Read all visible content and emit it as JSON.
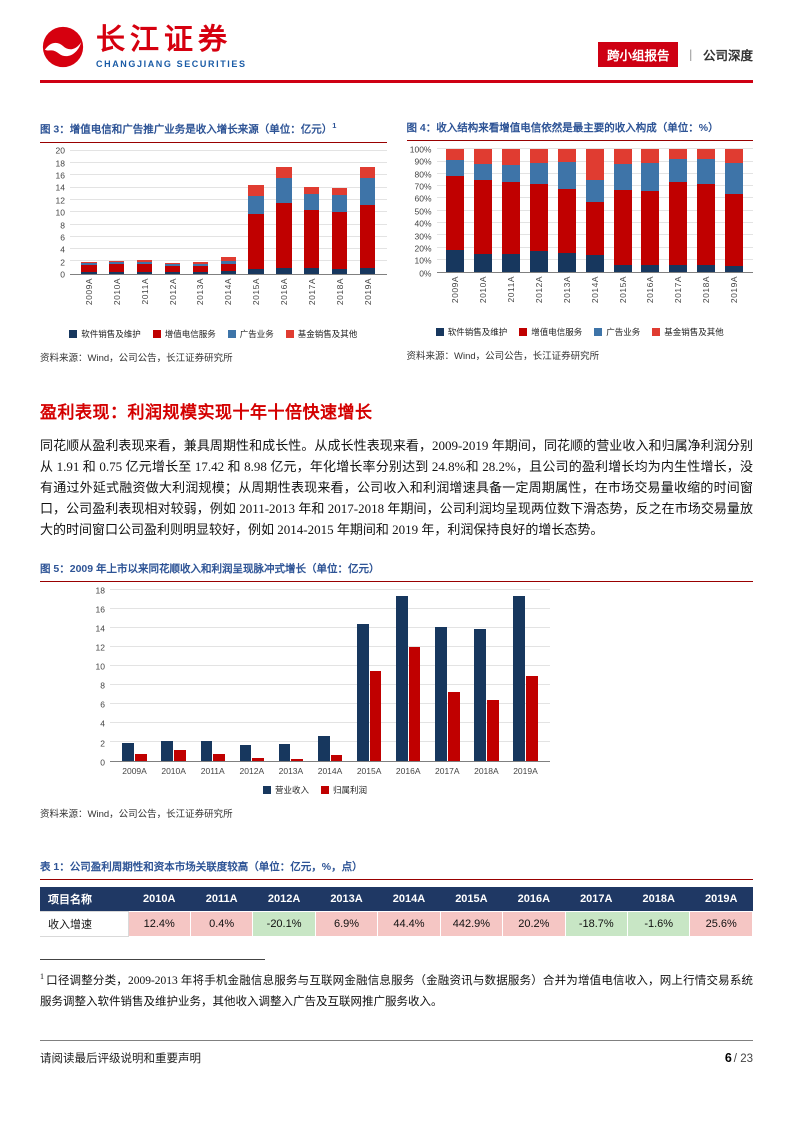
{
  "header": {
    "logo_cn": "长江证券",
    "logo_en": "CHANGJIANG SECURITIES",
    "badge": "跨小组报告",
    "divider": "丨",
    "category": "公司深度"
  },
  "section": {
    "heading": "盈利表现：利润规模实现十年十倍快速增长",
    "paragraph": "同花顺从盈利表现来看，兼具周期性和成长性。从成长性表现来看，2009-2019 年期间，同花顺的营业收入和归属净利润分别从 1.91 和 0.75 亿元增长至 17.42 和 8.98 亿元，年化增长率分别达到 24.8%和 28.2%，且公司的盈利增长均为内生性增长，没有通过外延式融资做大利润规模；从周期性表现来看，公司收入和利润增速具备一定周期属性，在市场交易量收缩的时间窗口，公司盈利表现相对较弱，例如 2011-2013 年和 2017-2018 年期间，公司利润均呈现两位数下滑态势，反之在市场交易量放大的时间窗口公司盈利则明显较好，例如 2014-2015 年期间和 2019 年，利润保持良好的增长态势。"
  },
  "chart_data": [
    {
      "id": "fig3",
      "type": "stacked-bar",
      "title": "图 3：增值电信和广告推广业务是收入增长来源（单位：亿元）",
      "title_sup": "1",
      "source": "资料来源：Wind，公司公告，长江证券研究所",
      "categories": [
        "2009A",
        "2010A",
        "2011A",
        "2012A",
        "2013A",
        "2014A",
        "2015A",
        "2016A",
        "2017A",
        "2018A",
        "2019A"
      ],
      "series": [
        {
          "name": "软件销售及维护",
          "color": "#17375E",
          "values": [
            0.35,
            0.33,
            0.32,
            0.3,
            0.3,
            0.38,
            0.85,
            1.0,
            0.9,
            0.85,
            0.9
          ]
        },
        {
          "name": "增值电信服务",
          "color": "#C00000",
          "values": [
            1.15,
            1.3,
            1.25,
            0.95,
            0.95,
            1.15,
            8.8,
            10.5,
            9.4,
            9.2,
            10.2
          ]
        },
        {
          "name": "广告业务",
          "color": "#3E74A8",
          "values": [
            0.25,
            0.27,
            0.31,
            0.29,
            0.41,
            0.48,
            3.0,
            4.0,
            2.7,
            2.7,
            4.4
          ]
        },
        {
          "name": "基金销售及其他",
          "color": "#E03C31",
          "values": [
            0.16,
            0.25,
            0.28,
            0.18,
            0.18,
            0.65,
            1.79,
            1.86,
            1.11,
            1.14,
            1.92
          ]
        }
      ],
      "ylim": [
        0,
        20
      ],
      "ytick": 2,
      "y_suffix": "",
      "x_rotate": true,
      "bar_w": "55%",
      "grid": true,
      "legend_position": "bottom"
    },
    {
      "id": "fig4",
      "type": "stacked-bar",
      "title": "图 4：收入结构来看增值电信依然是最主要的收入构成（单位：%）",
      "source": "资料来源：Wind，公司公告，长江证券研究所",
      "categories": [
        "2009A",
        "2010A",
        "2011A",
        "2012A",
        "2013A",
        "2014A",
        "2015A",
        "2016A",
        "2017A",
        "2018A",
        "2019A"
      ],
      "series": [
        {
          "name": "软件销售及维护",
          "color": "#17375E",
          "values": [
            18,
            15,
            15,
            17,
            16,
            14,
            6,
            6,
            6,
            6,
            5
          ]
        },
        {
          "name": "增值电信服务",
          "color": "#C00000",
          "values": [
            60,
            60,
            58,
            55,
            52,
            43,
            61,
            60,
            67,
            66,
            59
          ]
        },
        {
          "name": "广告业务",
          "color": "#3E74A8",
          "values": [
            13,
            13,
            14,
            17,
            22,
            18,
            21,
            23,
            19,
            20,
            25
          ]
        },
        {
          "name": "基金销售及其他",
          "color": "#E03C31",
          "values": [
            9,
            12,
            13,
            11,
            10,
            25,
            12,
            11,
            8,
            8,
            11
          ]
        }
      ],
      "ylim": [
        0,
        100
      ],
      "ytick": 10,
      "y_suffix": "%",
      "x_rotate": true,
      "bar_w": "65%",
      "grid": true,
      "legend_position": "bottom"
    },
    {
      "id": "fig5",
      "type": "grouped-bar",
      "title": "图 5：2009 年上市以来同花顺收入和利润呈现脉冲式增长（单位：亿元）",
      "source": "资料来源：Wind，公司公告，长江证券研究所",
      "categories": [
        "2009A",
        "2010A",
        "2011A",
        "2012A",
        "2013A",
        "2014A",
        "2015A",
        "2016A",
        "2017A",
        "2018A",
        "2019A"
      ],
      "series": [
        {
          "name": "营业收入",
          "color": "#17375E",
          "values": [
            1.91,
            2.15,
            2.16,
            1.72,
            1.84,
            2.66,
            14.44,
            17.36,
            14.11,
            13.89,
            17.42
          ]
        },
        {
          "name": "归属利润",
          "color": "#C00000",
          "values": [
            0.75,
            1.2,
            0.8,
            0.35,
            0.28,
            0.7,
            9.5,
            12.07,
            7.33,
            6.42,
            8.98
          ]
        }
      ],
      "ylim": [
        0,
        18
      ],
      "ytick": 2,
      "y_suffix": "",
      "x_rotate": false,
      "bar_w": "30%",
      "grid": true,
      "legend_position": "bottom"
    }
  ],
  "table": {
    "title": "表 1：公司盈利周期性和资本市场关联度较高（单位：亿元，%，点）",
    "header": [
      "项目名称",
      "2010A",
      "2011A",
      "2012A",
      "2013A",
      "2014A",
      "2015A",
      "2016A",
      "2017A",
      "2018A",
      "2019A"
    ],
    "rows": [
      {
        "label": "收入增速",
        "values": [
          "12.4%",
          "0.4%",
          "-20.1%",
          "6.9%",
          "44.4%",
          "442.9%",
          "20.2%",
          "-18.7%",
          "-1.6%",
          "25.6%"
        ]
      }
    ],
    "positive_color": "#F5C6C4",
    "negative_color": "#C8E6C5"
  },
  "footnote": {
    "sup": "1",
    "text": "口径调整分类，2009-2013 年将手机金融信息服务与互联网金融信息服务（金融资讯与数据服务）合并为增值电信收入，网上行情交易系统服务调整入软件销售及维护业务，其他收入调整入广告及互联网推广服务收入。"
  },
  "footer": {
    "disclaimer": "请阅读最后评级说明和重要声明",
    "page_num": "6",
    "page_sep": "/",
    "page_total": "23"
  }
}
